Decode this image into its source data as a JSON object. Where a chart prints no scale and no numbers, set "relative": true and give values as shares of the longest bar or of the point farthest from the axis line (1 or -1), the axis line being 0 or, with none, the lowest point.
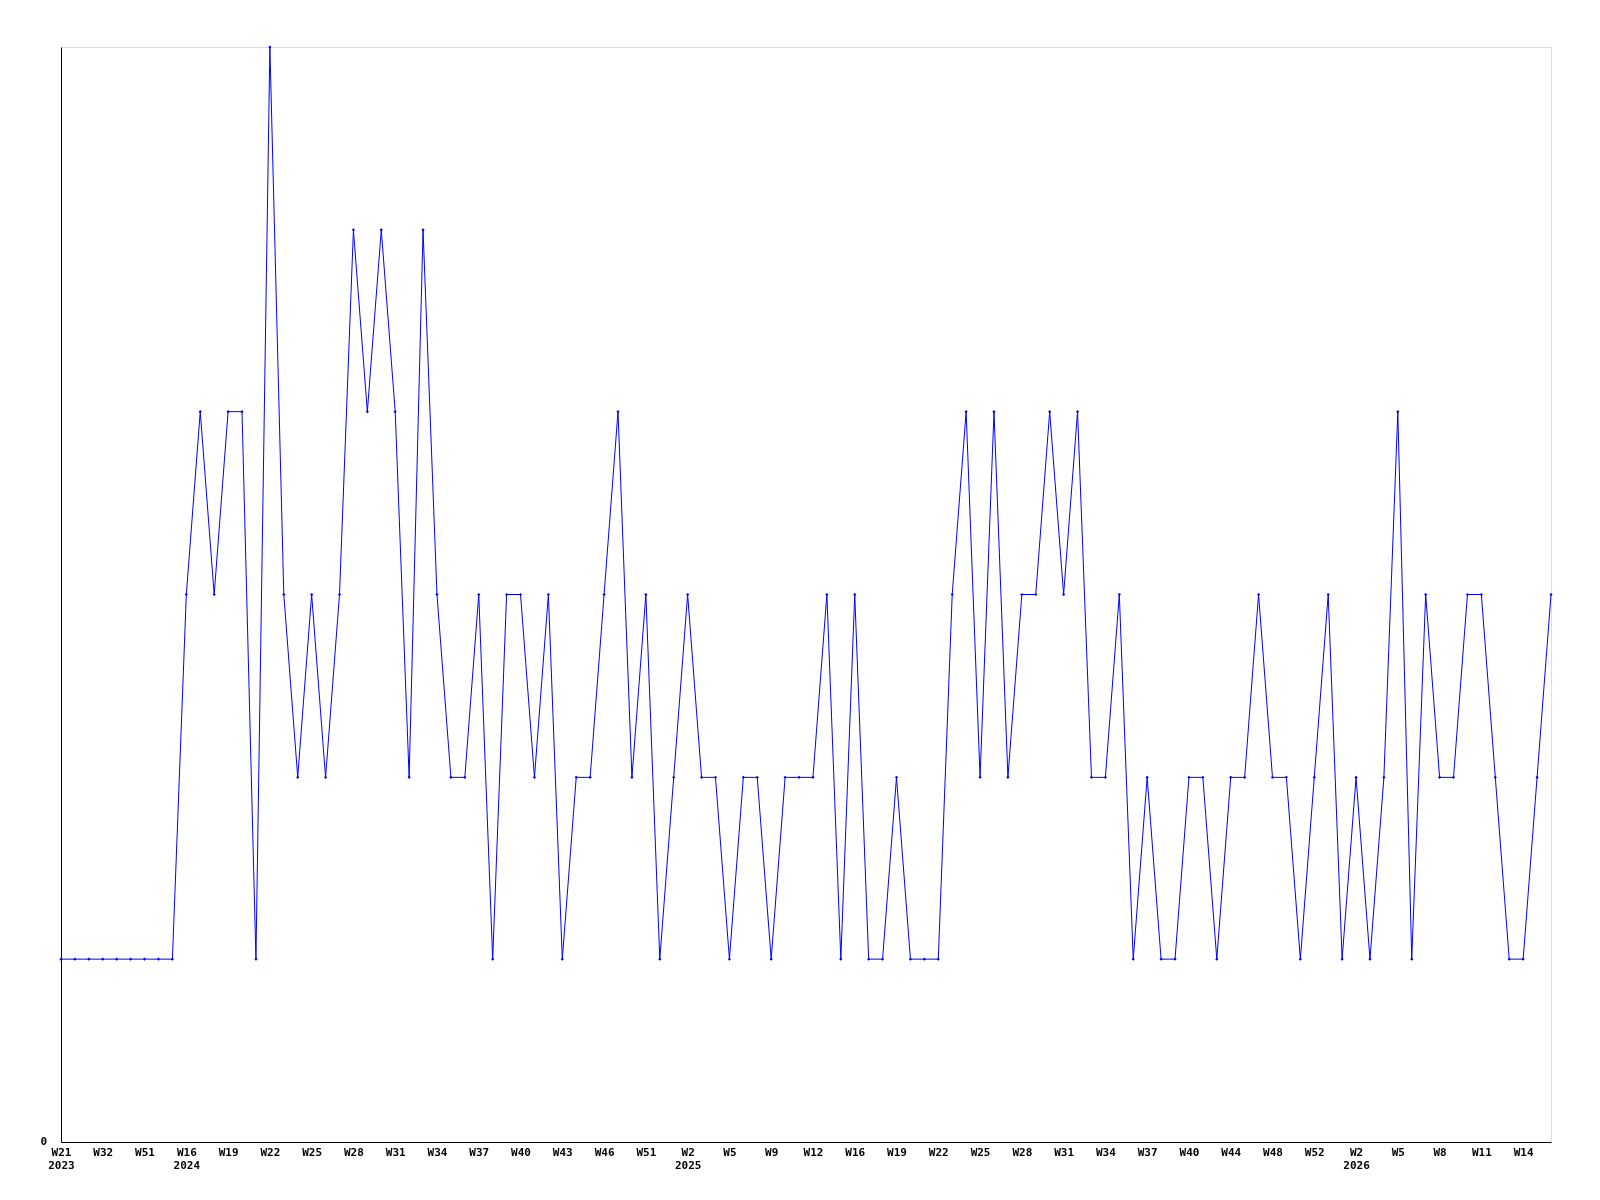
{
  "chart_data": {
    "type": "line",
    "relative": true,
    "color": "#0000ff",
    "marker": "diamond",
    "grid": false,
    "categories": [
      "W21\n2023",
      null,
      null,
      "W32",
      null,
      null,
      "W51",
      null,
      null,
      "W16\n2024",
      null,
      null,
      "W19",
      null,
      null,
      "W22",
      null,
      null,
      "W25",
      null,
      null,
      "W28",
      null,
      null,
      "W31",
      null,
      null,
      "W34",
      null,
      null,
      "W37",
      null,
      null,
      "W40",
      null,
      null,
      "W43",
      null,
      null,
      "W46",
      null,
      null,
      "W51",
      null,
      null,
      "W2\n2025",
      null,
      null,
      "W5",
      null,
      null,
      "W9",
      null,
      null,
      "W12",
      null,
      null,
      "W16",
      null,
      null,
      "W19",
      null,
      null,
      "W22",
      null,
      null,
      "W25",
      null,
      null,
      "W28",
      null,
      null,
      "W31",
      null,
      null,
      "W34",
      null,
      null,
      "W37",
      null,
      null,
      "W40",
      null,
      null,
      "W44",
      null,
      null,
      "W48",
      null,
      null,
      "W52",
      null,
      null,
      "W2\n2026",
      null,
      null,
      "W5",
      null,
      null,
      "W8",
      null,
      null,
      "W11",
      null,
      null,
      "W14",
      null,
      null
    ],
    "values": [
      0.167,
      0.167,
      0.167,
      0.167,
      0.167,
      0.167,
      0.167,
      0.167,
      0.167,
      0.5,
      0.667,
      0.5,
      0.667,
      0.667,
      0.167,
      1,
      0.5,
      0.333,
      0.5,
      0.333,
      0.5,
      0.833,
      0.667,
      0.833,
      0.667,
      0.333,
      0.833,
      0.5,
      0.333,
      0.333,
      0.5,
      0.167,
      0.5,
      0.5,
      0.333,
      0.5,
      0.167,
      0.333,
      0.333,
      0.5,
      0.667,
      0.333,
      0.5,
      0.167,
      0.333,
      0.5,
      0.333,
      0.333,
      0.167,
      0.333,
      0.333,
      0.167,
      0.333,
      0.333,
      0.333,
      0.5,
      0.167,
      0.5,
      0.167,
      0.167,
      0.333,
      0.167,
      0.167,
      0.167,
      0.5,
      0.667,
      0.333,
      0.667,
      0.333,
      0.5,
      0.5,
      0.667,
      0.5,
      0.667,
      0.333,
      0.333,
      0.5,
      0.167,
      0.333,
      0.167,
      0.167,
      0.333,
      0.333,
      0.167,
      0.333,
      0.333,
      0.5,
      0.333,
      0.333,
      0.167,
      0.333,
      0.5,
      0.167,
      0.333,
      0.167,
      0.333,
      0.667,
      0.167,
      0.5,
      0.333,
      0.333,
      0.5,
      0.5,
      0.333,
      0.167,
      0.167,
      0.333,
      0.5
    ],
    "annotations": [
      "0"
    ]
  }
}
